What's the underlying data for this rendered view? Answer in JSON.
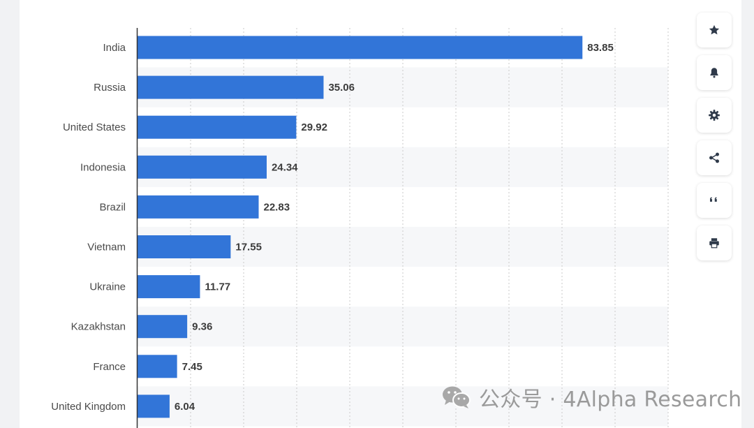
{
  "chart_data": {
    "type": "bar",
    "orientation": "horizontal",
    "categories": [
      "India",
      "Russia",
      "United States",
      "Indonesia",
      "Brazil",
      "Vietnam",
      "Ukraine",
      "Kazakhstan",
      "France",
      "United Kingdom"
    ],
    "values": [
      83.85,
      35.06,
      29.92,
      24.34,
      22.83,
      17.55,
      11.77,
      9.36,
      7.45,
      6.04
    ],
    "value_labels": [
      "83.85",
      "35.06",
      "29.92",
      "24.34",
      "22.83",
      "17.55",
      "11.77",
      "9.36",
      "7.45",
      "6.04"
    ],
    "xlim": [
      0,
      100
    ],
    "gridlines": "vertical dashed every 10",
    "bar_color": "#3275d8"
  },
  "toolbar": {
    "buttons": [
      "star-icon",
      "bell-icon",
      "gear-icon",
      "share-icon",
      "quote-icon",
      "print-icon"
    ]
  },
  "watermark": {
    "text": "公众号 · 4Alpha Research",
    "icon": "wechat-icon"
  },
  "colors": {
    "bar": "#3275d8",
    "stripe": "#f6f7f9",
    "grid": "#c9c9c9",
    "axis": "#333333"
  }
}
